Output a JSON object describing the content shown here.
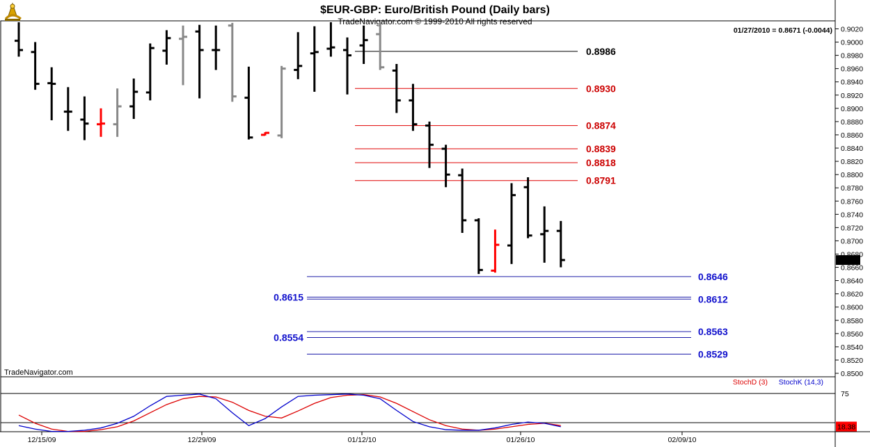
{
  "header": {
    "title": "$EUR-GBP:  Euro/British Pound  (Daily bars)",
    "subtitle": "TradeNavigator.com © 1999-2010 All rights reserved",
    "last_quote": "01/27/2010 = 0.8671 (-0.0044)"
  },
  "watermark": "TradeNavigator.com",
  "colors": {
    "up_bar": "#000000",
    "down_bar": "#000000",
    "inside_bar": "#888888",
    "highlight_bar": "#ff0000",
    "resistance_line": "#e00000",
    "resistance_text": "#cc0000",
    "support_line": "#1a1aa8",
    "support_text": "#1010cc",
    "stochD": "#dd0000",
    "stochK": "#0000cc",
    "price_tag_bg": "#000000",
    "stoch_tag_bg": "#ff0000"
  },
  "chart_data": [
    {
      "type": "ohlc",
      "name": "price",
      "ylim": [
        0.8495,
        0.903
      ],
      "y_ticks": [
        "0.9020",
        "0.9000",
        "0.8980",
        "0.8960",
        "0.8940",
        "0.8920",
        "0.8900",
        "0.8880",
        "0.8860",
        "0.8840",
        "0.8820",
        "0.8800",
        "0.8780",
        "0.8760",
        "0.8740",
        "0.8720",
        "0.8700",
        "0.8680",
        "0.8660",
        "0.8640",
        "0.8620",
        "0.8600",
        "0.8580",
        "0.8560",
        "0.8540",
        "0.8520",
        "0.8500"
      ],
      "x_ticks": [
        "12/15/09",
        "12/29/09",
        "01/12/10",
        "01/26/10",
        "02/09/10"
      ],
      "last_price": "0.8671",
      "bars": [
        {
          "i": 0,
          "o": 0.9002,
          "h": 0.903,
          "l": 0.8978,
          "c": 0.8988,
          "color": "black"
        },
        {
          "i": 1,
          "o": 0.8985,
          "h": 0.9,
          "l": 0.8928,
          "c": 0.8937,
          "color": "black"
        },
        {
          "i": 2,
          "o": 0.8938,
          "h": 0.8962,
          "l": 0.8882,
          "c": 0.8937,
          "color": "black"
        },
        {
          "i": 3,
          "o": 0.8895,
          "h": 0.8932,
          "l": 0.8866,
          "c": 0.8895,
          "color": "black"
        },
        {
          "i": 4,
          "o": 0.8883,
          "h": 0.8918,
          "l": 0.8852,
          "c": 0.8877,
          "color": "black"
        },
        {
          "i": 5,
          "o": 0.8876,
          "h": 0.89,
          "l": 0.8857,
          "c": 0.8877,
          "color": "red"
        },
        {
          "i": 6,
          "o": 0.8876,
          "h": 0.893,
          "l": 0.8857,
          "c": 0.8903,
          "color": "gray"
        },
        {
          "i": 7,
          "o": 0.8903,
          "h": 0.8945,
          "l": 0.8884,
          "c": 0.8925,
          "color": "black"
        },
        {
          "i": 8,
          "o": 0.8924,
          "h": 0.8998,
          "l": 0.8912,
          "c": 0.8991,
          "color": "black"
        },
        {
          "i": 9,
          "o": 0.8987,
          "h": 0.9018,
          "l": 0.8966,
          "c": 0.9006,
          "color": "black"
        },
        {
          "i": 10,
          "o": 0.9005,
          "h": 0.9025,
          "l": 0.8935,
          "c": 0.9008,
          "color": "gray"
        },
        {
          "i": 11,
          "o": 0.9016,
          "h": 0.9026,
          "l": 0.8915,
          "c": 0.8988,
          "color": "black"
        },
        {
          "i": 12,
          "o": 0.8988,
          "h": 0.9025,
          "l": 0.8958,
          "c": 0.8988,
          "color": "black"
        },
        {
          "i": 13,
          "o": 0.9025,
          "h": 0.9029,
          "l": 0.891,
          "c": 0.8918,
          "color": "gray"
        },
        {
          "i": 14,
          "o": 0.8916,
          "h": 0.8963,
          "l": 0.8853,
          "c": 0.8856,
          "color": "black"
        },
        {
          "i": 15,
          "o": 0.886,
          "h": 0.8864,
          "l": 0.8859,
          "c": 0.8863,
          "color": "red"
        },
        {
          "i": 16,
          "o": 0.8859,
          "h": 0.8964,
          "l": 0.8855,
          "c": 0.896,
          "color": "gray"
        },
        {
          "i": 17,
          "o": 0.8958,
          "h": 0.9015,
          "l": 0.8944,
          "c": 0.8964,
          "color": "black"
        },
        {
          "i": 18,
          "o": 0.8983,
          "h": 0.9024,
          "l": 0.8925,
          "c": 0.8985,
          "color": "black"
        },
        {
          "i": 19,
          "o": 0.899,
          "h": 0.903,
          "l": 0.8978,
          "c": 0.8992,
          "color": "black"
        },
        {
          "i": 20,
          "o": 0.8988,
          "h": 0.9007,
          "l": 0.8921,
          "c": 0.898,
          "color": "black"
        },
        {
          "i": 21,
          "o": 0.8995,
          "h": 0.9025,
          "l": 0.8967,
          "c": 0.9003,
          "color": "black"
        },
        {
          "i": 22,
          "o": 0.9012,
          "h": 0.903,
          "l": 0.8958,
          "c": 0.8962,
          "color": "gray"
        },
        {
          "i": 23,
          "o": 0.8957,
          "h": 0.8967,
          "l": 0.8893,
          "c": 0.8912,
          "color": "black"
        },
        {
          "i": 24,
          "o": 0.8912,
          "h": 0.8937,
          "l": 0.8866,
          "c": 0.8876,
          "color": "black"
        },
        {
          "i": 25,
          "o": 0.8874,
          "h": 0.888,
          "l": 0.881,
          "c": 0.8845,
          "color": "black"
        },
        {
          "i": 26,
          "o": 0.8839,
          "h": 0.8845,
          "l": 0.8781,
          "c": 0.88,
          "color": "black"
        },
        {
          "i": 27,
          "o": 0.8799,
          "h": 0.8809,
          "l": 0.8712,
          "c": 0.8731,
          "color": "black"
        },
        {
          "i": 28,
          "o": 0.8731,
          "h": 0.8734,
          "l": 0.865,
          "c": 0.8656,
          "color": "black"
        },
        {
          "i": 29,
          "o": 0.8655,
          "h": 0.8717,
          "l": 0.8652,
          "c": 0.8694,
          "color": "red"
        },
        {
          "i": 30,
          "o": 0.8693,
          "h": 0.8787,
          "l": 0.8665,
          "c": 0.8769,
          "color": "black"
        },
        {
          "i": 31,
          "o": 0.8781,
          "h": 0.8796,
          "l": 0.8704,
          "c": 0.8708,
          "color": "black"
        },
        {
          "i": 32,
          "o": 0.871,
          "h": 0.8752,
          "l": 0.8667,
          "c": 0.8715,
          "color": "black"
        },
        {
          "i": 33,
          "o": 0.8715,
          "h": 0.873,
          "l": 0.866,
          "c": 0.8671,
          "color": "black"
        }
      ],
      "levels": [
        {
          "value": 0.8986,
          "label": "0.8986",
          "kind": "black",
          "x_from": "01/12/10",
          "label_side": "right"
        },
        {
          "value": 0.893,
          "label": "0.8930",
          "kind": "resistance",
          "x_from": "01/12/10",
          "label_side": "right"
        },
        {
          "value": 0.8874,
          "label": "0.8874",
          "kind": "resistance",
          "x_from": "01/12/10",
          "label_side": "right"
        },
        {
          "value": 0.8839,
          "label": "0.8839",
          "kind": "resistance",
          "x_from": "01/12/10",
          "label_side": "right"
        },
        {
          "value": 0.8818,
          "label": "0.8818",
          "kind": "resistance",
          "x_from": "01/12/10",
          "label_side": "right"
        },
        {
          "value": 0.8791,
          "label": "0.8791",
          "kind": "resistance",
          "x_from": "01/12/10",
          "label_side": "right"
        },
        {
          "value": 0.8646,
          "label": "0.8646",
          "kind": "support",
          "x_from": "01/05/10",
          "label_side": "right"
        },
        {
          "value": 0.8615,
          "label": "0.8615",
          "kind": "support",
          "x_from": "01/05/10",
          "label_side": "left"
        },
        {
          "value": 0.8612,
          "label": "0.8612",
          "kind": "support",
          "x_from": "01/05/10",
          "label_side": "right"
        },
        {
          "value": 0.8563,
          "label": "0.8563",
          "kind": "support",
          "x_from": "01/05/10",
          "label_side": "right"
        },
        {
          "value": 0.8554,
          "label": "0.8554",
          "kind": "support",
          "x_from": "01/05/10",
          "label_side": "left"
        },
        {
          "value": 0.8529,
          "label": "0.8529",
          "kind": "support",
          "x_from": "01/05/10",
          "label_side": "right"
        }
      ]
    },
    {
      "type": "line",
      "name": "stochastic",
      "legend": [
        "StochD (3)",
        "StochK (14,3)"
      ],
      "ylim": [
        0,
        100
      ],
      "y_ticks": [
        "75",
        "0"
      ],
      "reference_lines": [
        75,
        25
      ],
      "last_value": "18.38",
      "series": [
        {
          "name": "StochD (3)",
          "values": [
            38,
            24,
            14,
            10,
            10,
            13,
            18,
            28,
            42,
            56,
            66,
            70,
            69,
            60,
            46,
            36,
            33,
            45,
            58,
            68,
            72,
            73,
            69,
            58,
            44,
            30,
            20,
            14,
            12,
            14,
            18,
            22,
            24,
            20
          ]
        },
        {
          "name": "StochK (14,3)",
          "values": [
            20,
            14,
            10,
            10,
            12,
            16,
            24,
            36,
            54,
            70,
            72,
            74,
            66,
            42,
            20,
            32,
            52,
            70,
            72,
            73,
            74,
            72,
            66,
            46,
            27,
            18,
            13,
            12,
            12,
            16,
            22,
            26,
            24,
            18
          ]
        }
      ]
    }
  ]
}
